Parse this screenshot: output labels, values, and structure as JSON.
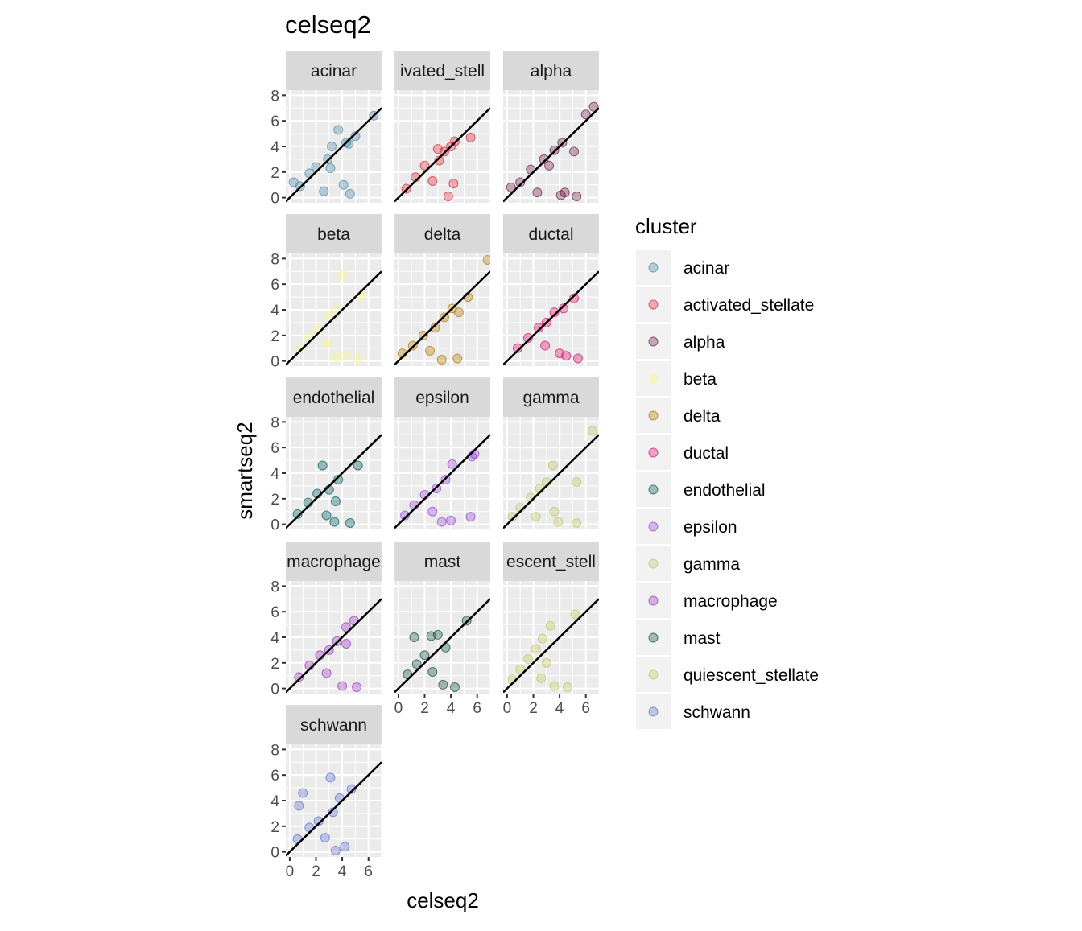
{
  "chart_data": {
    "type": "scatter",
    "title": "celseq2",
    "xlabel": "celseq2",
    "ylabel": "smartseq2",
    "xlim": [
      -0.3,
      7
    ],
    "ylim": [
      -0.4,
      8.4
    ],
    "x_ticks": [
      0,
      2,
      4,
      6
    ],
    "y_ticks": [
      0,
      2,
      4,
      6,
      8
    ],
    "grid": true,
    "reference_line": {
      "slope": 1,
      "intercept": 0
    },
    "legend": {
      "title": "cluster",
      "position": "right"
    },
    "facets": [
      {
        "label": "acinar",
        "strip_text": "acinar",
        "color": "#4E87A8",
        "points": [
          [
            6.4,
            6.4
          ],
          [
            5.0,
            4.8
          ],
          [
            4.3,
            4.3
          ],
          [
            3.7,
            5.3
          ],
          [
            3.2,
            4.0
          ],
          [
            4.5,
            4.2
          ],
          [
            2.9,
            3.0
          ],
          [
            4.6,
            0.3
          ],
          [
            4.1,
            1.0
          ],
          [
            2.0,
            2.4
          ],
          [
            1.5,
            1.9
          ],
          [
            0.8,
            0.9
          ],
          [
            0.3,
            1.2
          ],
          [
            2.6,
            0.5
          ],
          [
            3.1,
            2.3
          ]
        ]
      },
      {
        "label": "activated_stellate",
        "strip_text": "ivated_stell",
        "color": "#D9283B",
        "points": [
          [
            4.3,
            4.4
          ],
          [
            4.0,
            4.0
          ],
          [
            3.5,
            3.6
          ],
          [
            3.1,
            2.9
          ],
          [
            5.5,
            4.7
          ],
          [
            4.2,
            1.1
          ],
          [
            3.8,
            0.1
          ],
          [
            2.0,
            2.5
          ],
          [
            1.3,
            1.6
          ],
          [
            0.6,
            0.7
          ],
          [
            2.6,
            1.3
          ],
          [
            3.0,
            3.8
          ]
        ]
      },
      {
        "label": "alpha",
        "strip_text": "alpha",
        "color": "#6B1E4A",
        "points": [
          [
            6.6,
            7.1
          ],
          [
            6.0,
            6.5
          ],
          [
            5.1,
            3.6
          ],
          [
            4.2,
            4.3
          ],
          [
            3.6,
            3.7
          ],
          [
            4.4,
            0.4
          ],
          [
            4.1,
            0.2
          ],
          [
            5.3,
            0.1
          ],
          [
            2.8,
            3.0
          ],
          [
            3.2,
            2.5
          ],
          [
            1.8,
            2.2
          ],
          [
            1.0,
            1.2
          ],
          [
            0.3,
            0.8
          ],
          [
            2.3,
            0.4
          ]
        ]
      },
      {
        "label": "beta",
        "strip_text": "beta",
        "color": "#FAF68C",
        "points": [
          [
            4.0,
            6.7
          ],
          [
            3.5,
            4.0
          ],
          [
            2.9,
            3.5
          ],
          [
            5.4,
            5.1
          ],
          [
            4.2,
            0.4
          ],
          [
            3.6,
            0.3
          ],
          [
            5.2,
            0.2
          ],
          [
            2.2,
            2.5
          ],
          [
            1.5,
            1.8
          ],
          [
            0.7,
            1.0
          ],
          [
            2.8,
            1.4
          ]
        ]
      },
      {
        "label": "delta",
        "strip_text": "delta",
        "color": "#B4780C",
        "points": [
          [
            6.8,
            7.9
          ],
          [
            5.3,
            5.0
          ],
          [
            4.1,
            4.1
          ],
          [
            3.5,
            3.4
          ],
          [
            4.6,
            3.8
          ],
          [
            4.5,
            0.2
          ],
          [
            3.3,
            0.1
          ],
          [
            2.8,
            2.6
          ],
          [
            1.9,
            2.0
          ],
          [
            1.1,
            1.2
          ],
          [
            0.3,
            0.6
          ],
          [
            2.4,
            0.8
          ]
        ]
      },
      {
        "label": "ductal",
        "strip_text": "ductal",
        "color": "#DA0E6C",
        "points": [
          [
            5.1,
            4.9
          ],
          [
            4.3,
            4.1
          ],
          [
            3.6,
            3.8
          ],
          [
            3.0,
            3.0
          ],
          [
            4.5,
            0.4
          ],
          [
            5.4,
            0.2
          ],
          [
            4.0,
            0.6
          ],
          [
            2.4,
            2.6
          ],
          [
            1.6,
            1.8
          ],
          [
            0.8,
            1.0
          ],
          [
            2.9,
            1.2
          ]
        ]
      },
      {
        "label": "endothelial",
        "strip_text": "endothelial",
        "color": "#005A5E",
        "points": [
          [
            5.2,
            4.6
          ],
          [
            2.5,
            4.6
          ],
          [
            3.7,
            3.5
          ],
          [
            3.0,
            2.7
          ],
          [
            4.6,
            0.1
          ],
          [
            3.4,
            0.2
          ],
          [
            2.1,
            2.4
          ],
          [
            1.4,
            1.7
          ],
          [
            0.6,
            0.8
          ],
          [
            2.8,
            0.7
          ],
          [
            3.5,
            1.8
          ]
        ]
      },
      {
        "label": "epsilon",
        "strip_text": "epsilon",
        "color": "#9747D5",
        "points": [
          [
            5.8,
            5.5
          ],
          [
            5.6,
            5.3
          ],
          [
            4.1,
            4.7
          ],
          [
            3.6,
            3.5
          ],
          [
            2.9,
            2.8
          ],
          [
            4.0,
            0.3
          ],
          [
            5.5,
            0.6
          ],
          [
            3.3,
            0.2
          ],
          [
            2.0,
            2.3
          ],
          [
            1.2,
            1.5
          ],
          [
            0.5,
            0.7
          ],
          [
            2.6,
            1.0
          ]
        ]
      },
      {
        "label": "gamma",
        "strip_text": "gamma",
        "color": "#C4C46E",
        "points": [
          [
            6.5,
            7.3
          ],
          [
            5.3,
            3.3
          ],
          [
            3.5,
            4.6
          ],
          [
            3.0,
            3.3
          ],
          [
            2.5,
            2.8
          ],
          [
            3.6,
            1.0
          ],
          [
            5.3,
            0.1
          ],
          [
            3.9,
            0.2
          ],
          [
            1.8,
            2.1
          ],
          [
            1.0,
            1.3
          ],
          [
            0.4,
            0.6
          ],
          [
            2.2,
            0.6
          ]
        ]
      },
      {
        "label": "macrophage",
        "strip_text": "macrophage",
        "color": "#9838BC",
        "points": [
          [
            4.9,
            5.3
          ],
          [
            4.3,
            4.8
          ],
          [
            3.6,
            3.7
          ],
          [
            3.0,
            3.0
          ],
          [
            4.3,
            3.5
          ],
          [
            5.1,
            0.1
          ],
          [
            4.0,
            0.2
          ],
          [
            2.3,
            2.6
          ],
          [
            1.5,
            1.8
          ],
          [
            0.7,
            0.9
          ],
          [
            2.8,
            1.2
          ]
        ]
      },
      {
        "label": "mast",
        "strip_text": "mast",
        "color": "#124D41",
        "points": [
          [
            5.2,
            5.3
          ],
          [
            3.0,
            4.2
          ],
          [
            2.5,
            4.1
          ],
          [
            1.2,
            4.0
          ],
          [
            3.6,
            3.2
          ],
          [
            4.3,
            0.1
          ],
          [
            3.4,
            0.3
          ],
          [
            2.0,
            2.6
          ],
          [
            1.4,
            1.9
          ],
          [
            0.7,
            1.1
          ],
          [
            2.6,
            1.3
          ]
        ]
      },
      {
        "label": "quiescent_stellate",
        "strip_text": "escent_stell",
        "color": "#C3C85F",
        "points": [
          [
            5.2,
            5.8
          ],
          [
            3.3,
            4.9
          ],
          [
            2.7,
            3.9
          ],
          [
            2.2,
            3.1
          ],
          [
            4.6,
            0.1
          ],
          [
            3.6,
            0.2
          ],
          [
            1.6,
            2.3
          ],
          [
            1.0,
            1.5
          ],
          [
            0.4,
            0.7
          ],
          [
            2.6,
            0.8
          ],
          [
            3.0,
            2.0
          ]
        ]
      },
      {
        "label": "schwann",
        "strip_text": "schwann",
        "color": "#5E72CF",
        "points": [
          [
            4.7,
            4.9
          ],
          [
            3.1,
            5.8
          ],
          [
            3.8,
            4.2
          ],
          [
            1.0,
            4.6
          ],
          [
            0.7,
            3.6
          ],
          [
            3.3,
            3.1
          ],
          [
            4.2,
            0.4
          ],
          [
            3.5,
            0.1
          ],
          [
            2.2,
            2.4
          ],
          [
            1.5,
            1.9
          ],
          [
            0.6,
            1.0
          ],
          [
            2.7,
            1.1
          ]
        ]
      }
    ]
  }
}
